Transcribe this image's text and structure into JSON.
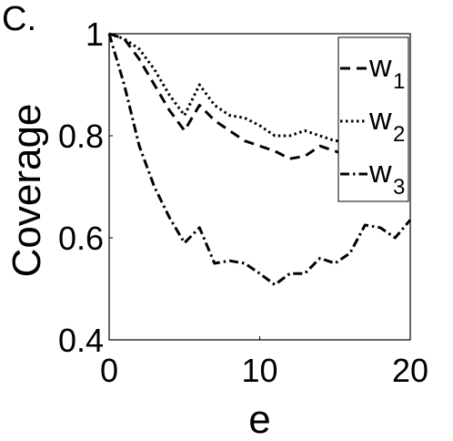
{
  "panel_label": "C.",
  "chart_data": {
    "type": "line",
    "title": "",
    "xlabel": "e",
    "ylabel": "Coverage",
    "xlim": [
      0,
      20
    ],
    "ylim": [
      0.4,
      1
    ],
    "xticks": [
      0,
      10,
      20
    ],
    "xtick_labels": [
      "0",
      "10",
      "20"
    ],
    "yticks": [
      0.4,
      0.6,
      0.8,
      1
    ],
    "ytick_labels": [
      "0.4",
      "0.6",
      "0.8",
      "1"
    ],
    "grid": false,
    "legend_position": "top-right",
    "x": [
      0,
      1,
      2,
      3,
      4,
      5,
      6,
      7,
      8,
      9,
      10,
      11,
      12,
      13,
      14,
      15,
      16,
      17,
      18,
      19,
      20
    ],
    "series": [
      {
        "name": "w",
        "subscript": "1",
        "dash": "dashed",
        "color": "#000000",
        "values": [
          1.0,
          0.99,
          0.95,
          0.9,
          0.85,
          0.81,
          0.86,
          0.83,
          0.81,
          0.79,
          0.78,
          0.77,
          0.755,
          0.76,
          0.78,
          0.77,
          0.76,
          0.76,
          0.75,
          0.755,
          0.75
        ]
      },
      {
        "name": "w",
        "subscript": "2",
        "dash": "dotted",
        "color": "#000000",
        "values": [
          1.0,
          0.99,
          0.97,
          0.93,
          0.88,
          0.84,
          0.9,
          0.86,
          0.84,
          0.835,
          0.82,
          0.8,
          0.8,
          0.81,
          0.8,
          0.79,
          0.79,
          0.78,
          0.78,
          0.77,
          0.77
        ]
      },
      {
        "name": "w",
        "subscript": "3",
        "dash": "dashdot",
        "color": "#000000",
        "values": [
          1.0,
          0.9,
          0.78,
          0.7,
          0.64,
          0.59,
          0.62,
          0.55,
          0.555,
          0.55,
          0.53,
          0.508,
          0.53,
          0.53,
          0.56,
          0.55,
          0.57,
          0.625,
          0.62,
          0.6,
          0.635
        ]
      }
    ]
  }
}
